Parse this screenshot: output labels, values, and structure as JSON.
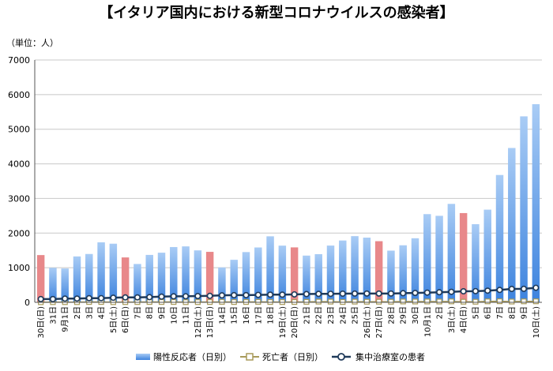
{
  "chart_data": {
    "type": "bar",
    "title": "【イタリア国内における新型コロナウイルスの感染者】",
    "unit_label": "（単位：人）",
    "ylim": [
      0,
      7000
    ],
    "yticks": [
      0,
      1000,
      2000,
      3000,
      4000,
      5000,
      6000,
      7000
    ],
    "grid": true,
    "legend_position": "bottom",
    "categories": [
      "30日(日)",
      "31日",
      "9月1日",
      "2日",
      "3日",
      "4日",
      "5日(土)",
      "6日(日)",
      "7日",
      "8日",
      "9日",
      "10日",
      "11日",
      "12日(土)",
      "13日(日)",
      "14日",
      "15日",
      "16日",
      "17日",
      "18日",
      "19日(土)",
      "20日(日)",
      "21日",
      "22日",
      "23日",
      "24日",
      "25日",
      "26日(土)",
      "27日(日)",
      "28日",
      "29日",
      "30日",
      "10月1日",
      "2日",
      "3日(土)",
      "4日(日)",
      "5日",
      "6日",
      "7日",
      "8日",
      "9日",
      "10日(土)"
    ],
    "highlight_indices": [
      0,
      7,
      14,
      21,
      28,
      35
    ],
    "series": [
      {
        "name": "陽性反応者（日別）",
        "kind": "bar",
        "color": "#5b9bea",
        "highlight_color": "#e8888a",
        "values": [
          1365,
          996,
          978,
          1326,
          1397,
          1733,
          1694,
          1297,
          1108,
          1370,
          1434,
          1597,
          1616,
          1501,
          1458,
          1008,
          1229,
          1452,
          1585,
          1907,
          1638,
          1587,
          1350,
          1392,
          1640,
          1786,
          1912,
          1869,
          1766,
          1494,
          1648,
          1851,
          2548,
          2499,
          2844,
          2578,
          2257,
          2677,
          3678,
          4458,
          5372,
          5724
        ]
      },
      {
        "name": "死亡者（日別）",
        "kind": "line",
        "color": "#a89a5a",
        "values": [
          4,
          6,
          6,
          6,
          10,
          10,
          5,
          7,
          8,
          10,
          10,
          10,
          6,
          7,
          9,
          14,
          9,
          10,
          14,
          10,
          8,
          10,
          14,
          20,
          20,
          10,
          20,
          17,
          18,
          17,
          24,
          23,
          24,
          23,
          27,
          18,
          17,
          28,
          31,
          22,
          28,
          29
        ]
      },
      {
        "name": "集中治療室の患者",
        "kind": "line",
        "color": "#1f3a5a",
        "values": [
          94,
          94,
          107,
          109,
          120,
          121,
          133,
          142,
          143,
          150,
          164,
          174,
          175,
          182,
          187,
          201,
          207,
          208,
          215,
          222,
          222,
          229,
          239,
          244,
          246,
          251,
          253,
          254,
          254,
          254,
          264,
          271,
          280,
          291,
          303,
          319,
          323,
          337,
          358,
          387,
          390,
          420
        ]
      }
    ]
  }
}
